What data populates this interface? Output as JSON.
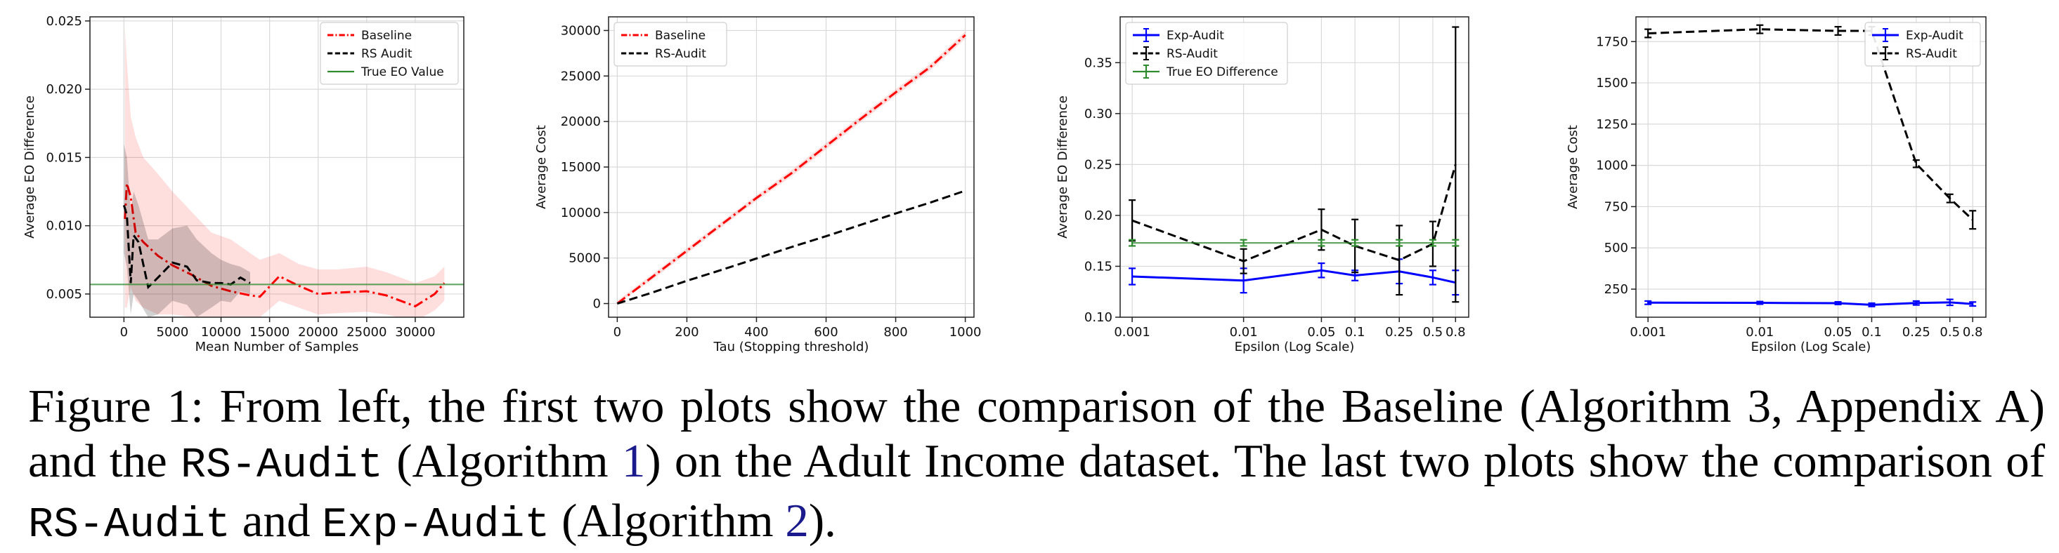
{
  "chart_data": [
    {
      "type": "line",
      "xlabel": "Mean Number of Samples",
      "ylabel": "Average EO Difference",
      "xlim": [
        -3500,
        35000
      ],
      "ylim": [
        0.0033,
        0.0253
      ],
      "xticks": [
        0,
        5000,
        10000,
        15000,
        20000,
        25000,
        30000
      ],
      "yticks": [
        0.005,
        0.01,
        0.015,
        0.02,
        0.025
      ],
      "ytick_labels": [
        "0.005",
        "0.010",
        "0.015",
        "0.020",
        "0.025"
      ],
      "grid": true,
      "legend": "top-right",
      "series": [
        {
          "name": "Baseline",
          "color": "#ff0000",
          "dash": "dashdot",
          "x": [
            100,
            300,
            700,
            1200,
            2000,
            3500,
            5000,
            7000,
            9000,
            11000,
            13000,
            14000,
            16000,
            18000,
            20000,
            22000,
            25000,
            27000,
            30000,
            32000,
            33000
          ],
          "y": [
            0.0105,
            0.0131,
            0.0121,
            0.0095,
            0.0088,
            0.0078,
            0.0071,
            0.0064,
            0.0056,
            0.0052,
            0.0049,
            0.0048,
            0.0063,
            0.0056,
            0.005,
            0.0051,
            0.0052,
            0.0049,
            0.0041,
            0.005,
            0.0058
          ],
          "band_upper": [
            0.0245,
            0.022,
            0.018,
            0.0165,
            0.015,
            0.0138,
            0.0125,
            0.011,
            0.0095,
            0.009,
            0.008,
            0.0075,
            0.008,
            0.0072,
            0.0068,
            0.0068,
            0.007,
            0.0066,
            0.0058,
            0.0063,
            0.007
          ],
          "band_lower": [
            0.004,
            0.004,
            0.0055,
            0.0045,
            0.004,
            0.0035,
            0.0035,
            0.0033,
            0.0033,
            0.0033,
            0.0033,
            0.0033,
            0.0045,
            0.004,
            0.0035,
            0.0036,
            0.0037,
            0.0035,
            0.003,
            0.0038,
            0.0045
          ]
        },
        {
          "name": "RS Audit",
          "color": "#000000",
          "dash": "dashed",
          "x": [
            0,
            300,
            700,
            1000,
            1500,
            2500,
            3500,
            5000,
            6500,
            7500,
            9000,
            10000,
            11000,
            12000,
            13000
          ],
          "y": [
            0.0115,
            0.0108,
            0.0058,
            0.0093,
            0.0088,
            0.0055,
            0.0062,
            0.0073,
            0.007,
            0.006,
            0.0058,
            0.0058,
            0.0057,
            0.0062,
            0.0058
          ],
          "band_upper": [
            0.016,
            0.015,
            0.011,
            0.0125,
            0.0115,
            0.009,
            0.009,
            0.0098,
            0.01,
            0.009,
            0.008,
            0.0075,
            0.0072,
            0.007,
            0.0066
          ],
          "band_lower": [
            0.008,
            0.007,
            0.0035,
            0.005,
            0.0045,
            0.0033,
            0.0035,
            0.0045,
            0.0042,
            0.0033,
            0.004,
            0.0045,
            0.0044,
            0.0052,
            0.005
          ]
        },
        {
          "name": "True EO Value",
          "color": "#2e8b2e",
          "dash": "solid",
          "x": [
            -3500,
            35000
          ],
          "y": [
            0.0057,
            0.0057
          ]
        }
      ]
    },
    {
      "type": "line",
      "xlabel": "Tau (Stopping threshold)",
      "ylabel": "Average Cost",
      "xlim": [
        -25,
        1025
      ],
      "ylim": [
        -1500,
        31500
      ],
      "xticks": [
        0,
        200,
        400,
        600,
        800,
        1000
      ],
      "yticks": [
        0,
        5000,
        10000,
        15000,
        20000,
        25000,
        30000
      ],
      "grid": true,
      "legend": "top-left",
      "series": [
        {
          "name": "Baseline",
          "color": "#ff0000",
          "dash": "dashdot",
          "x": [
            0,
            100,
            200,
            300,
            400,
            500,
            600,
            700,
            800,
            900,
            1000
          ],
          "y": [
            0,
            2900,
            5800,
            8700,
            11600,
            14300,
            17300,
            20300,
            23200,
            26000,
            29500
          ],
          "band_upper": [
            300,
            3200,
            6100,
            9000,
            11900,
            14650,
            17650,
            20650,
            23550,
            26350,
            29900
          ],
          "band_lower": [
            0,
            2600,
            5500,
            8400,
            11300,
            13950,
            16950,
            19950,
            22850,
            25650,
            29100
          ]
        },
        {
          "name": "RS-Audit",
          "color": "#000000",
          "dash": "dashed",
          "x": [
            0,
            100,
            200,
            300,
            400,
            500,
            600,
            700,
            800,
            900,
            1000
          ],
          "y": [
            0,
            1200,
            2500,
            3700,
            4950,
            6200,
            7400,
            8650,
            9900,
            11100,
            12400
          ]
        }
      ]
    },
    {
      "type": "line",
      "xlabel": "Epsilon (Log Scale)",
      "ylabel": "Average EO Difference",
      "xscale": "log",
      "xlim": [
        0.00078,
        1.05
      ],
      "ylim": [
        0.1,
        0.395
      ],
      "xticks": [
        0.001,
        0.01,
        0.05,
        0.1,
        0.25,
        0.5,
        0.8
      ],
      "xtick_labels": [
        "0.001",
        "0.01",
        "0.05",
        "0.1",
        "0.25",
        "0.5",
        "0.8"
      ],
      "yticks": [
        0.1,
        0.15,
        0.2,
        0.25,
        0.3,
        0.35
      ],
      "ytick_labels": [
        "0.10",
        "0.15",
        "0.20",
        "0.25",
        "0.30",
        "0.35"
      ],
      "grid": true,
      "legend": "top-left",
      "series": [
        {
          "name": "Exp-Audit",
          "color": "#0000ff",
          "dash": "solid",
          "x": [
            0.001,
            0.01,
            0.05,
            0.1,
            0.25,
            0.5,
            0.8
          ],
          "y": [
            0.14,
            0.136,
            0.146,
            0.141,
            0.145,
            0.139,
            0.134
          ],
          "err": [
            0.008,
            0.012,
            0.007,
            0.005,
            0.012,
            0.007,
            0.012
          ]
        },
        {
          "name": "RS-Audit",
          "color": "#000000",
          "dash": "dashed",
          "x": [
            0.001,
            0.01,
            0.05,
            0.1,
            0.25,
            0.5,
            0.8
          ],
          "y": [
            0.195,
            0.155,
            0.186,
            0.17,
            0.156,
            0.172,
            0.25
          ],
          "err": [
            0.02,
            0.012,
            0.02,
            0.026,
            0.034,
            0.022,
            0.135
          ]
        },
        {
          "name": "True EO Difference",
          "color": "#2e8b2e",
          "dash": "solid",
          "x": [
            0.001,
            0.01,
            0.05,
            0.1,
            0.25,
            0.5,
            0.8
          ],
          "y": [
            0.173,
            0.173,
            0.173,
            0.173,
            0.173,
            0.173,
            0.173
          ],
          "err": [
            0.003,
            0.003,
            0.003,
            0.003,
            0.003,
            0.003,
            0.003
          ]
        }
      ]
    },
    {
      "type": "line",
      "xlabel": "Epsilon (Log Scale)",
      "ylabel": "Average Cost",
      "xscale": "log",
      "xlim": [
        0.00078,
        1.05
      ],
      "ylim": [
        80,
        1900
      ],
      "xticks": [
        0.001,
        0.01,
        0.05,
        0.1,
        0.25,
        0.5,
        0.8
      ],
      "xtick_labels": [
        "0.001",
        "0.01",
        "0.05",
        "0.1",
        "0.25",
        "0.5",
        "0.8"
      ],
      "yticks": [
        250,
        500,
        750,
        1000,
        1250,
        1500,
        1750
      ],
      "grid": true,
      "legend": "top-right",
      "series": [
        {
          "name": "Exp-Audit",
          "color": "#0000ff",
          "dash": "solid",
          "x": [
            0.001,
            0.01,
            0.05,
            0.1,
            0.25,
            0.5,
            0.8
          ],
          "y": [
            168,
            167,
            165,
            155,
            166,
            170,
            160
          ],
          "err": [
            10,
            8,
            8,
            10,
            12,
            18,
            12
          ]
        },
        {
          "name": "RS-Audit",
          "color": "#000000",
          "dash": "dashed",
          "x": [
            0.001,
            0.01,
            0.05,
            0.1,
            0.25,
            0.5,
            0.8
          ],
          "y": [
            1800,
            1825,
            1815,
            1815,
            1010,
            800,
            670
          ],
          "err": [
            25,
            25,
            25,
            25,
            22,
            25,
            55
          ]
        }
      ]
    }
  ],
  "caption": {
    "p1": "Figure 1: From left, the first two plots show the comparison of the Baseline (Algorithm 3, Appendix A) and the ",
    "code1": "RS-Audit",
    "p2": " (Algorithm ",
    "ref1": "1",
    "p3": ") on the Adult Income dataset.  The last two plots show the comparison of ",
    "code2": "RS-Audit",
    "p4": " and ",
    "code3": "Exp-Audit",
    "p5": " (Algorithm ",
    "ref2": "2",
    "p6": ")."
  }
}
